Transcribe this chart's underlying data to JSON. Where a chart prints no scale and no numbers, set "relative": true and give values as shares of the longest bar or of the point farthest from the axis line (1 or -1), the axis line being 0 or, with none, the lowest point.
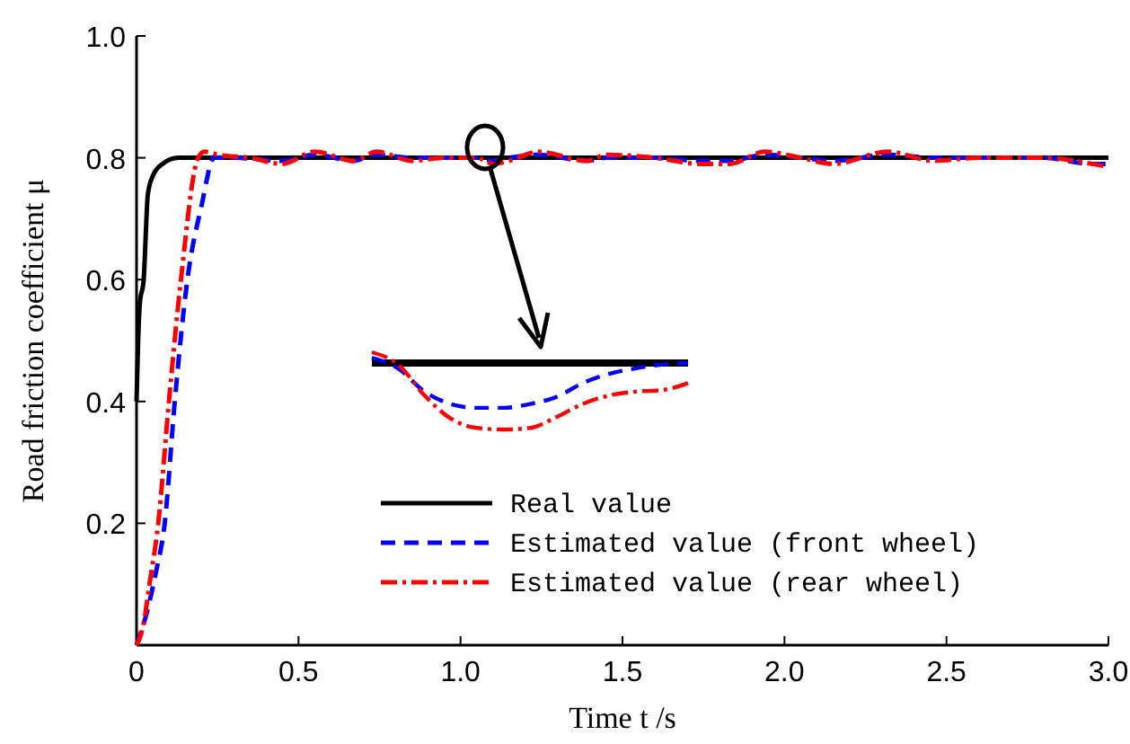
{
  "chart_data": [
    {
      "type": "line",
      "xlabel": "Time  t /s",
      "ylabel": "Road friction coefficient μ",
      "xlim": [
        0,
        3.0
      ],
      "xticks": [
        {
          "value": 0,
          "label": "0"
        },
        0.5,
        {
          "value": 1,
          "label": "1.0"
        },
        1.5,
        {
          "value": 2,
          "label": "2.0"
        },
        2.5,
        {
          "value": 3,
          "label": "3.0"
        }
      ],
      "ylim": [
        0,
        1.0
      ],
      "yticks": [
        {
          "value": 0,
          "label": null
        },
        0.2,
        0.4,
        0.6,
        0.8,
        {
          "value": 1,
          "label": "1.0"
        }
      ],
      "grid": false,
      "legend": "bottom",
      "series": [
        {
          "name": "Real value",
          "color": "#000000",
          "line_style": "solid",
          "x": [
            0,
            0.005,
            0.01,
            0.022,
            0.035,
            0.05,
            0.08,
            0.13,
            3.0
          ],
          "values": [
            0.4,
            0.5,
            0.56,
            0.6,
            0.74,
            0.77,
            0.79,
            0.8,
            0.8
          ]
        },
        {
          "name": "Estimated value (front wheel)",
          "color": "#0000ff",
          "line_style": "dashed",
          "x": [
            0,
            0.03,
            0.06,
            0.087,
            0.118,
            0.157,
            0.2,
            0.24,
            0.3,
            0.45,
            0.55,
            0.67,
            0.74,
            0.85,
            0.95,
            1.05,
            1.1,
            1.15,
            1.24,
            1.39,
            1.45,
            1.6,
            1.74,
            1.83,
            1.94,
            2.05,
            2.15,
            2.32,
            2.46,
            2.6,
            2.8,
            2.95,
            3.0
          ],
          "values": [
            0,
            0.05,
            0.12,
            0.2,
            0.4,
            0.6,
            0.72,
            0.8,
            0.8,
            0.795,
            0.805,
            0.795,
            0.805,
            0.8,
            0.8,
            0.8,
            0.795,
            0.8,
            0.805,
            0.795,
            0.8,
            0.8,
            0.795,
            0.795,
            0.805,
            0.8,
            0.795,
            0.805,
            0.8,
            0.8,
            0.8,
            0.79,
            0.79
          ]
        },
        {
          "name": "Estimated value (rear wheel)",
          "color": "#ff0000",
          "line_style": "dashdot",
          "x": [
            0,
            0.02,
            0.04,
            0.067,
            0.1,
            0.137,
            0.19,
            0.21,
            0.25,
            0.35,
            0.45,
            0.55,
            0.67,
            0.74,
            0.85,
            0.95,
            1.05,
            1.1,
            1.15,
            1.24,
            1.39,
            1.45,
            1.6,
            1.74,
            1.83,
            1.94,
            2.05,
            2.15,
            2.32,
            2.46,
            2.6,
            2.8,
            2.95,
            3.0
          ],
          "values": [
            0,
            0.03,
            0.1,
            0.2,
            0.4,
            0.6,
            0.8,
            0.81,
            0.805,
            0.8,
            0.79,
            0.81,
            0.795,
            0.81,
            0.795,
            0.8,
            0.8,
            0.79,
            0.795,
            0.81,
            0.795,
            0.805,
            0.8,
            0.79,
            0.79,
            0.81,
            0.8,
            0.79,
            0.81,
            0.795,
            0.8,
            0.8,
            0.79,
            0.785
          ]
        }
      ]
    },
    {
      "type": "line",
      "relative": true,
      "legend": false,
      "categories": [
        null,
        null,
        null,
        null,
        null,
        null,
        null,
        null,
        null,
        null,
        null,
        null,
        null
      ],
      "series": [
        {
          "color": "#000000",
          "line_style": "solid",
          "values": [
            0.86,
            0.86,
            0.86,
            0.86,
            0.86,
            0.86,
            0.86,
            0.86,
            0.86,
            0.86,
            0.86,
            0.86,
            0.86
          ]
        },
        {
          "color": "#0000ff",
          "line_style": "dashed",
          "values": [
            0.93,
            0.79,
            0.49,
            0.33,
            0.28,
            0.28,
            0.33,
            0.42,
            0.6,
            0.72,
            0.79,
            0.84,
            0.86
          ]
        },
        {
          "color": "#ff0000",
          "line_style": "dashdot",
          "values": [
            1.0,
            0.84,
            0.44,
            0.14,
            0.02,
            0,
            0.02,
            0.16,
            0.33,
            0.44,
            0.49,
            0.51,
            0.6
          ]
        }
      ]
    }
  ]
}
